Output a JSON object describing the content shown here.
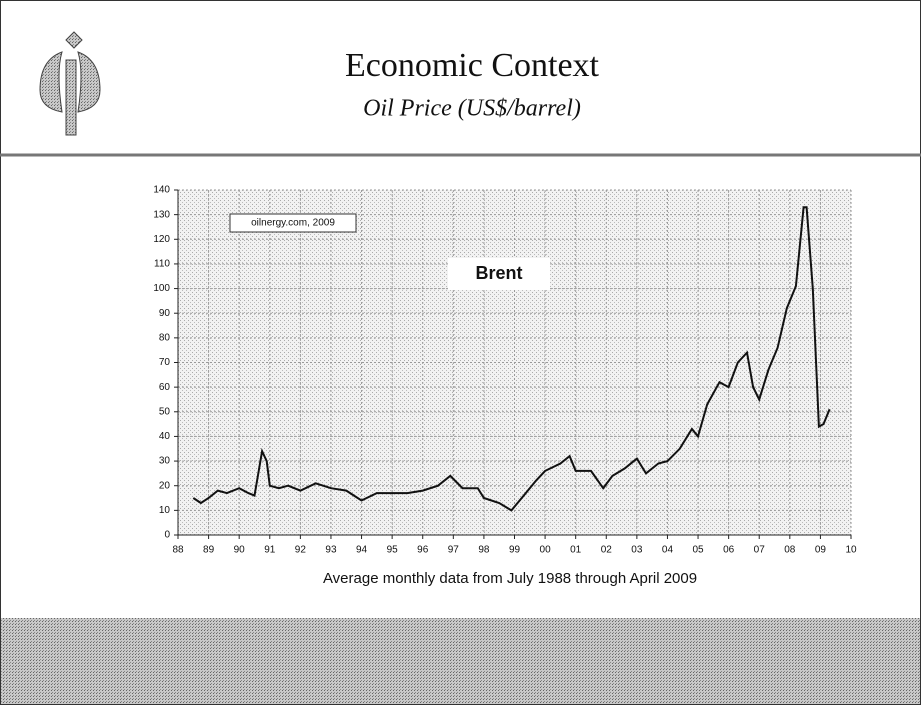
{
  "chart_data": {
    "type": "line",
    "title": "Economic Context",
    "subtitle": "Oil Price (US$/barrel)",
    "source_note": "oilnergy.com, 2009",
    "x_label": "Average monthly data from July 1988 through April 2009",
    "grid": true,
    "x": [
      1988.5,
      1988.75,
      1989.0,
      1989.3,
      1989.6,
      1990.0,
      1990.3,
      1990.5,
      1990.75,
      1990.9,
      1991.0,
      1991.3,
      1991.6,
      1992.0,
      1992.5,
      1993.0,
      1993.5,
      1994.0,
      1994.5,
      1995.0,
      1995.5,
      1996.0,
      1996.5,
      1996.9,
      1997.3,
      1997.8,
      1998.0,
      1998.5,
      1998.9,
      1999.3,
      1999.7,
      2000.0,
      2000.5,
      2000.8,
      2001.0,
      2001.5,
      2001.9,
      2002.2,
      2002.6,
      2003.0,
      2003.3,
      2003.7,
      2004.0,
      2004.4,
      2004.8,
      2005.0,
      2005.3,
      2005.7,
      2006.0,
      2006.3,
      2006.6,
      2006.8,
      2007.0,
      2007.3,
      2007.6,
      2007.9,
      2008.2,
      2008.45,
      2008.55,
      2008.75,
      2008.95,
      2009.1,
      2009.3
    ],
    "series": [
      {
        "name": "Brent",
        "color": "#111111",
        "values": [
          15,
          13,
          15,
          18,
          17,
          19,
          17,
          16,
          34,
          30,
          20,
          19,
          20,
          18,
          21,
          19,
          18,
          14,
          17,
          17,
          17,
          18,
          20,
          24,
          19,
          19,
          15,
          13,
          10,
          16,
          22,
          26,
          29,
          32,
          26,
          26,
          19,
          24,
          27,
          31,
          25,
          29,
          30,
          35,
          43,
          40,
          53,
          62,
          60,
          70,
          74,
          60,
          55,
          67,
          76,
          92,
          101,
          133,
          133,
          100,
          44,
          45,
          51
        ]
      }
    ],
    "xlim": [
      1988,
      2010
    ],
    "xticks": [
      {
        "value": 1988,
        "label": "88"
      },
      {
        "value": 1989,
        "label": "89"
      },
      {
        "value": 1990,
        "label": "90"
      },
      {
        "value": 1991,
        "label": "91"
      },
      {
        "value": 1992,
        "label": "92"
      },
      {
        "value": 1993,
        "label": "93"
      },
      {
        "value": 1994,
        "label": "94"
      },
      {
        "value": 1995,
        "label": "95"
      },
      {
        "value": 1996,
        "label": "96"
      },
      {
        "value": 1997,
        "label": "97"
      },
      {
        "value": 1998,
        "label": "98"
      },
      {
        "value": 1999,
        "label": "99"
      },
      {
        "value": 2000,
        "label": "00"
      },
      {
        "value": 2001,
        "label": "01"
      },
      {
        "value": 2002,
        "label": "02"
      },
      {
        "value": 2003,
        "label": "03"
      },
      {
        "value": 2004,
        "label": "04"
      },
      {
        "value": 2005,
        "label": "05"
      },
      {
        "value": 2006,
        "label": "06"
      },
      {
        "value": 2007,
        "label": "07"
      },
      {
        "value": 2008,
        "label": "08"
      },
      {
        "value": 2009,
        "label": "09"
      },
      {
        "value": 2010,
        "label": "10"
      }
    ],
    "ylim": [
      0,
      140
    ],
    "yticks": [
      0,
      10,
      20,
      30,
      40,
      50,
      60,
      70,
      80,
      90,
      100,
      110,
      120,
      130,
      140
    ]
  }
}
